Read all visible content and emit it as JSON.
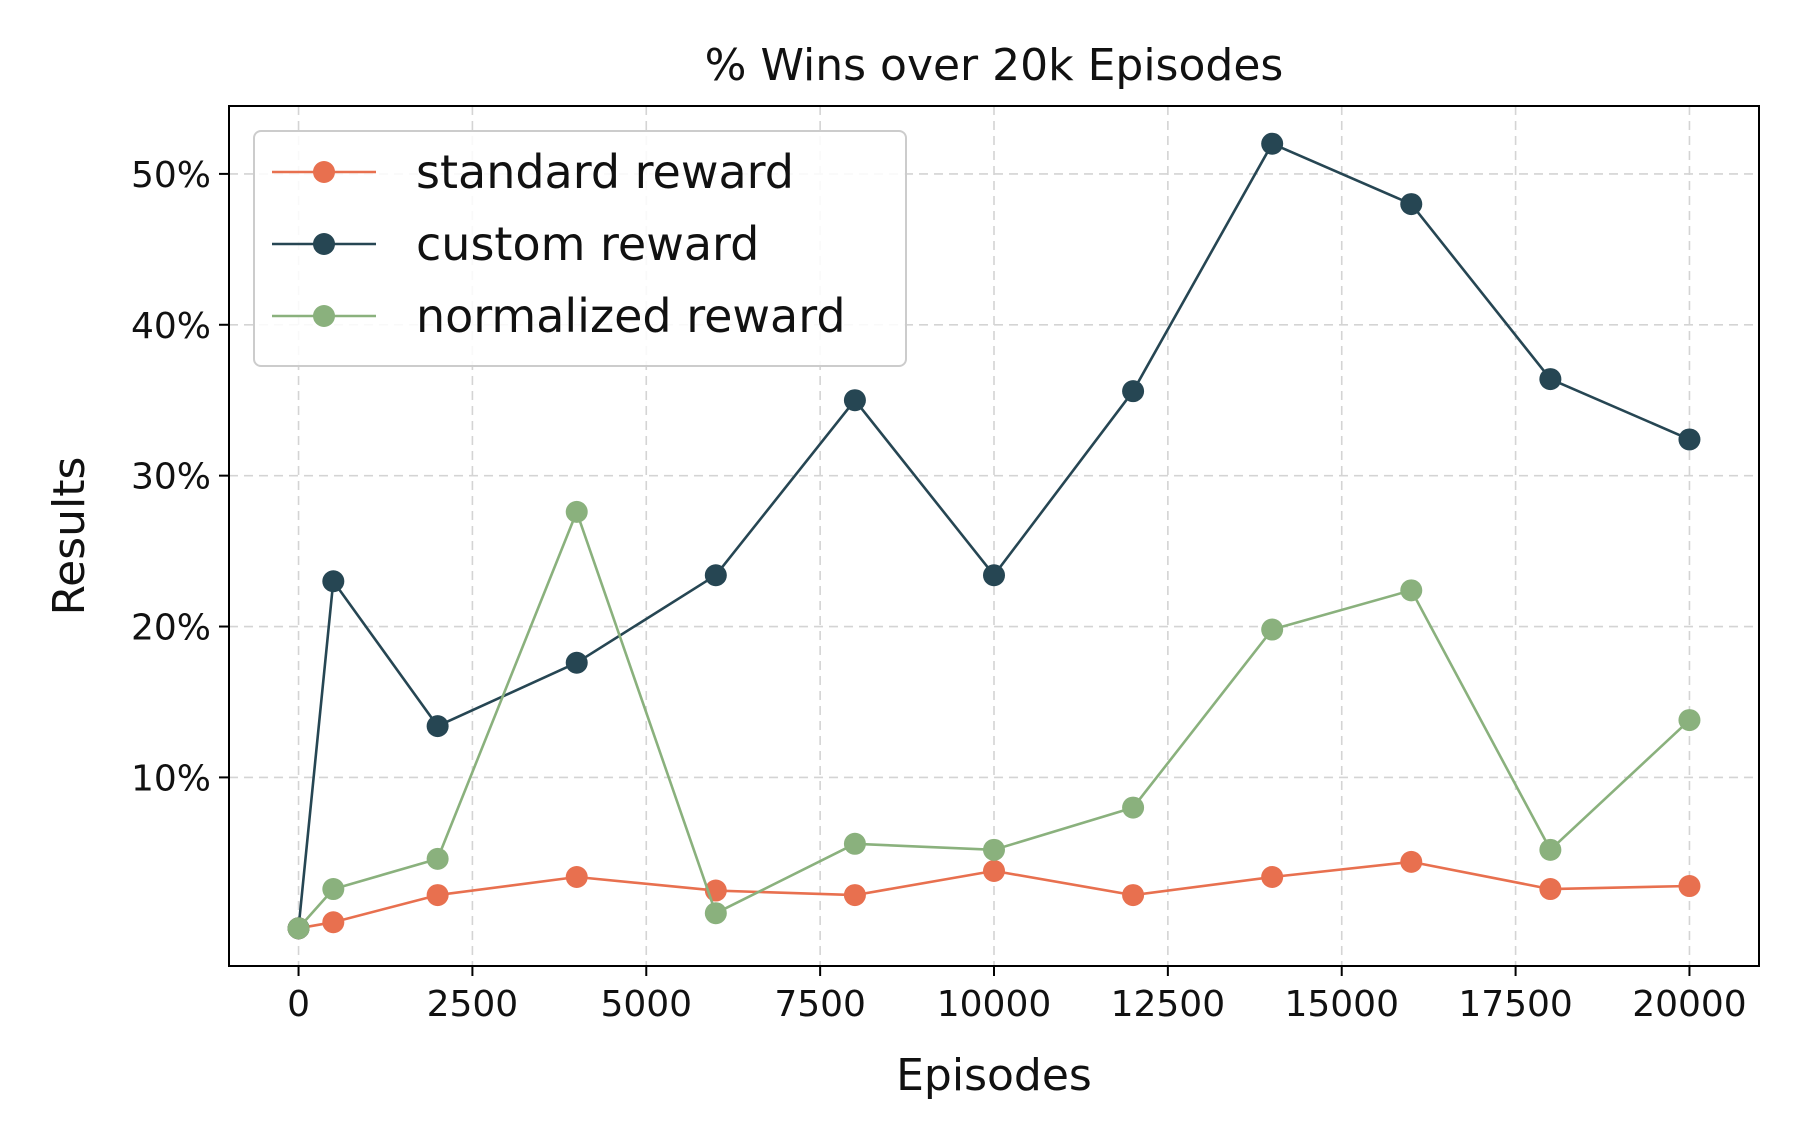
{
  "chart_data": {
    "type": "line",
    "title": "% Wins over 20k Episodes",
    "xlabel": "Episodes",
    "ylabel": "Results",
    "xlim": [
      -1000,
      21000
    ],
    "ylim": [
      -2.5,
      54.5
    ],
    "x_ticks": [
      0,
      2500,
      5000,
      7500,
      10000,
      12500,
      15000,
      17500,
      20000
    ],
    "x_tick_labels": [
      "0",
      "2500",
      "5000",
      "7500",
      "10000",
      "12500",
      "15000",
      "17500",
      "20000"
    ],
    "y_ticks": [
      10,
      20,
      30,
      40,
      50
    ],
    "y_tick_labels": [
      "10%",
      "20%",
      "30%",
      "40%",
      "50%"
    ],
    "grid": true,
    "legend_position": "top-left",
    "x": [
      0,
      500,
      2000,
      4000,
      6000,
      8000,
      10000,
      12000,
      14000,
      16000,
      18000,
      20000
    ],
    "series": [
      {
        "name": "standard reward",
        "color": "#e8704f",
        "values": [
          0.0,
          0.4,
          2.2,
          3.4,
          2.5,
          2.2,
          3.8,
          2.2,
          3.4,
          4.4,
          2.6,
          2.8
        ]
      },
      {
        "name": "custom reward",
        "color": "#264653",
        "values": [
          0.0,
          23.0,
          13.4,
          17.6,
          23.4,
          35.0,
          23.4,
          35.6,
          52.0,
          48.0,
          36.4,
          32.4
        ]
      },
      {
        "name": "normalized reward",
        "color": "#8ab17d",
        "values": [
          0.0,
          2.6,
          4.6,
          27.6,
          1.0,
          5.6,
          5.2,
          8.0,
          19.8,
          22.4,
          5.2,
          13.8
        ]
      }
    ]
  }
}
